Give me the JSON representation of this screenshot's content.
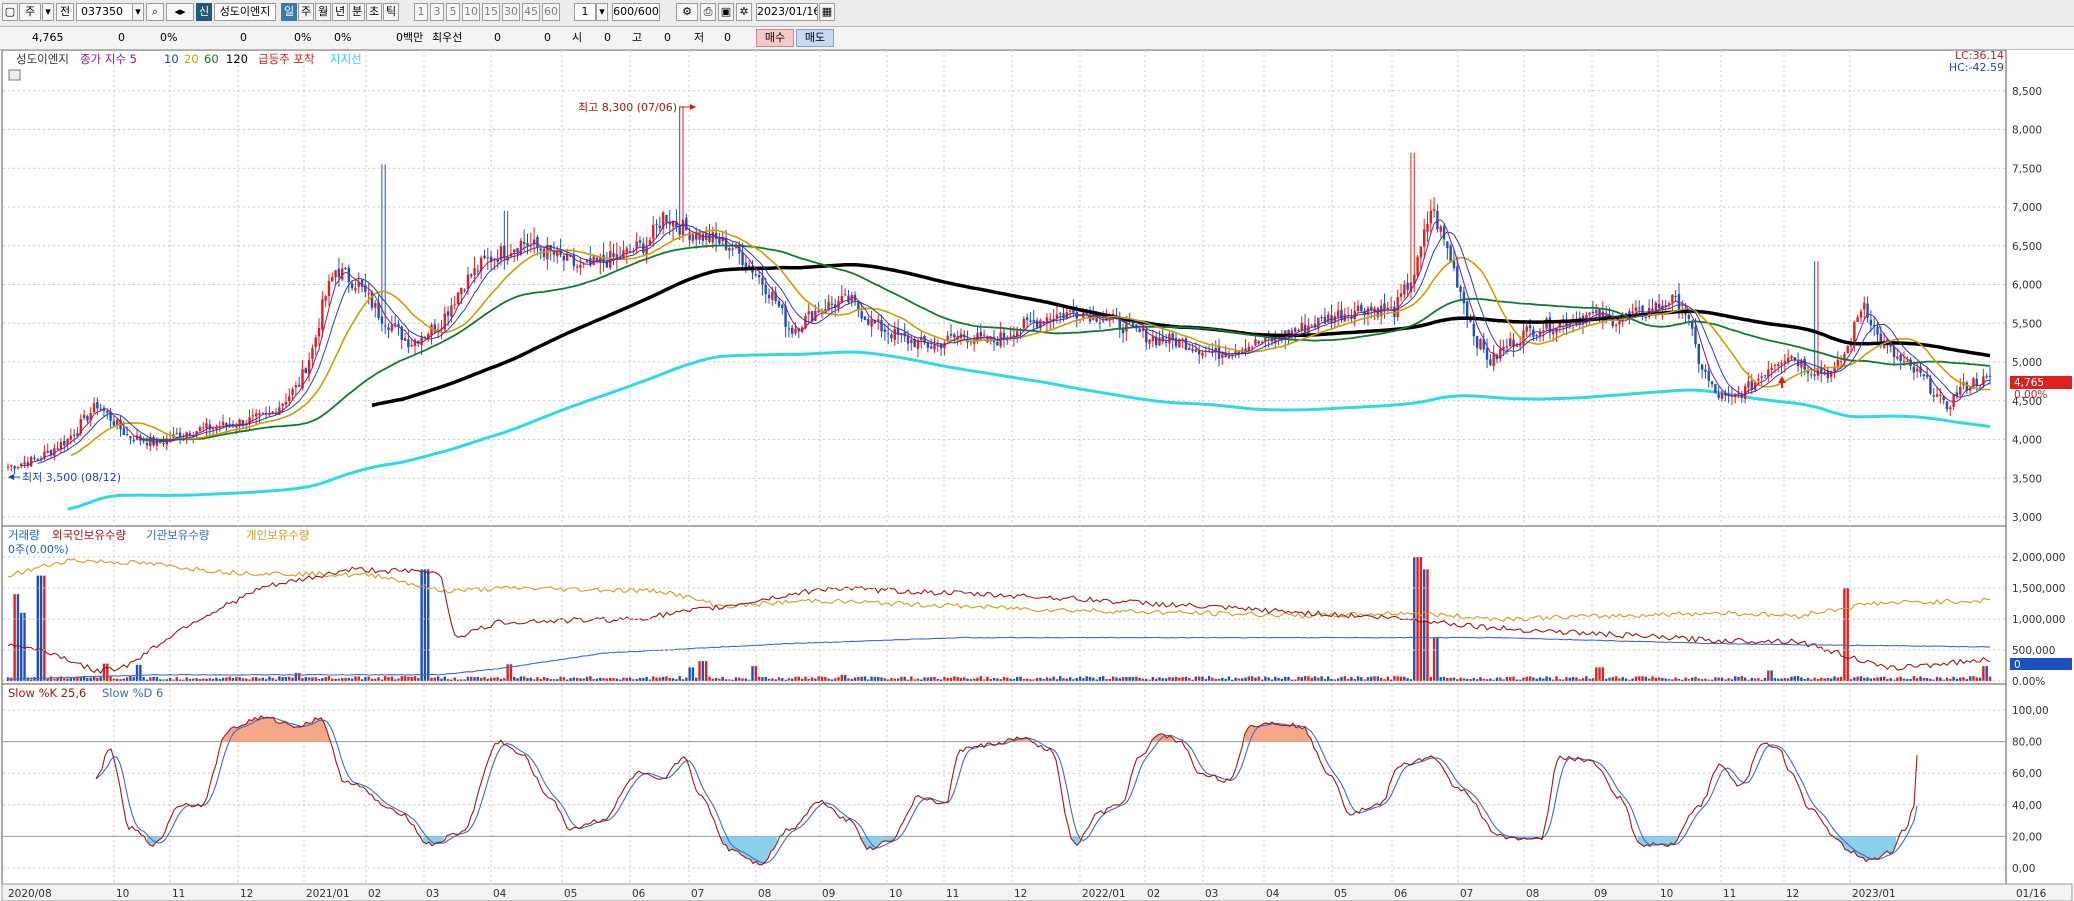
{
  "toolbar": {
    "period_label": "주",
    "all_label": "전",
    "code": "037350",
    "new_badge": "신",
    "stock_name": "성도이엔지",
    "periods": [
      "일",
      "주",
      "월",
      "년",
      "분",
      "초",
      "틱"
    ],
    "intervals": [
      "1",
      "3",
      "5",
      "10",
      "15",
      "30",
      "45",
      "60"
    ],
    "interval_value": "1",
    "count": "600/600",
    "date": "2023/01/16"
  },
  "infobar": {
    "price": "4,765",
    "v1": "0",
    "p1": "0%",
    "v2": "0",
    "p2": "0%",
    "p3": "0%",
    "amount": "0백만",
    "best_label": "최우선",
    "best1": "0",
    "best2": "0",
    "open_label": "시",
    "open": "0",
    "high_label": "고",
    "high": "0",
    "low_label": "저",
    "low": "0",
    "buy_label": "매수",
    "sell_label": "매도"
  },
  "price_panel": {
    "legend": [
      {
        "text": "성도이엔지",
        "color": "#333333"
      },
      {
        "text": "종가 지수 5",
        "color": "#8b1c8b"
      },
      {
        "text": "10",
        "color": "#2b40a8"
      },
      {
        "text": "20",
        "color": "#c8a000"
      },
      {
        "text": "60",
        "color": "#107a30"
      },
      {
        "text": "120",
        "color": "#000000"
      },
      {
        "text": "급등주 포착",
        "color": "#c82020"
      },
      {
        "text": "지지선",
        "color": "#30d0e0"
      }
    ],
    "lc": "LC:36.14",
    "hc": "HC:-42.59",
    "current_price": "4,765",
    "current_pct": "0.00%",
    "high_annotation": "최고 8,300 (07/06)",
    "low_annotation": "최저 3,500 (08/12)",
    "y_ticks": [
      "8,500",
      "8,000",
      "7,500",
      "7,000",
      "6,500",
      "6,000",
      "5,500",
      "5,000",
      "4,500",
      "4,000",
      "3,500",
      "3,000"
    ]
  },
  "volume_panel": {
    "legend": [
      {
        "text": "거래량",
        "color": "#1e60c0"
      },
      {
        "text": "외국인보유수량",
        "color": "#a01818"
      },
      {
        "text": "기관보유수량",
        "color": "#3c6cc8"
      },
      {
        "text": "개인보유수량",
        "color": "#c8a020"
      }
    ],
    "sublabel": "0주(0.00%)",
    "y_ticks": [
      "2,000,000",
      "1,500,000",
      "1,000,000",
      "500,000",
      "0.00%"
    ],
    "current_value": "0"
  },
  "stoch_panel": {
    "legend": [
      {
        "text": "Slow %K 25,6",
        "color": "#a01818"
      },
      {
        "text": "Slow %D 6",
        "color": "#3c6cc8"
      }
    ],
    "y_ticks": [
      "100,00",
      "80,00",
      "60,00",
      "40,00",
      "20,00",
      "0,00"
    ]
  },
  "x_axis": {
    "labels": [
      "2020/08",
      "10",
      "11",
      "12",
      "2021/01",
      "02",
      "03",
      "04",
      "05",
      "06",
      "07",
      "08",
      "09",
      "10",
      "11",
      "12",
      "2022/01",
      "02",
      "03",
      "04",
      "05",
      "06",
      "07",
      "08",
      "09",
      "10",
      "11",
      "12",
      "2023/01",
      "01/16"
    ]
  },
  "colors": {
    "candle_up": "#e02020",
    "candle_down": "#1e4fc0",
    "ma120": "#000000",
    "support": "#30d8e8"
  }
}
